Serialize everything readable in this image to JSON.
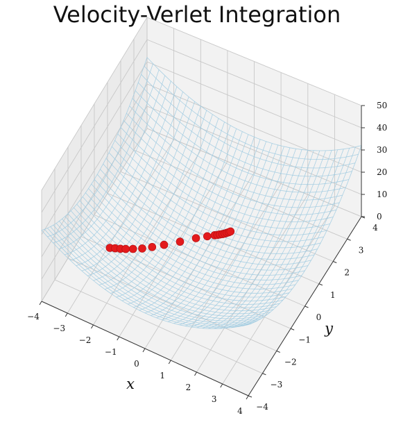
{
  "chart_data": {
    "type": "scatter",
    "title": "Velocity-Verlet Integration",
    "xlabel": "x",
    "ylabel": "y",
    "zlabel": "",
    "xlim": [
      -4,
      4
    ],
    "ylim": [
      -4,
      4
    ],
    "zlim": [
      0,
      50
    ],
    "x_ticks": [
      "−4",
      "−3",
      "−2",
      "−1",
      "0",
      "1",
      "2",
      "3",
      "4"
    ],
    "y_ticks": [
      "−4",
      "−3",
      "−2",
      "−1",
      "0",
      "1",
      "2",
      "3",
      "4"
    ],
    "z_ticks": [
      "0",
      "10",
      "20",
      "30",
      "40",
      "50"
    ],
    "grid": true,
    "surface": {
      "style": "wireframe",
      "color": "#9ecae1"
    },
    "trajectory": {
      "color": "#e31a1c",
      "x": [
        -2.75,
        -2.6,
        -2.45,
        -2.3,
        -2.1,
        -1.85,
        -1.6,
        -1.3,
        -0.9,
        -0.5,
        -0.2,
        0.0,
        0.08,
        0.15,
        0.22,
        0.28,
        0.33,
        0.38,
        0.42
      ],
      "y": [
        -1.3,
        -1.2,
        -1.1,
        -1.0,
        -0.85,
        -0.65,
        -0.4,
        -0.1,
        0.3,
        0.7,
        0.95,
        1.1,
        1.15,
        1.2,
        1.25,
        1.3,
        1.35,
        1.4,
        1.45
      ],
      "z": [
        4.3,
        3.9,
        3.5,
        3.2,
        2.8,
        2.3,
        1.8,
        1.4,
        0.9,
        0.6,
        0.5,
        0.5,
        0.55,
        0.6,
        0.65,
        0.7,
        0.75,
        0.8,
        0.85
      ]
    }
  }
}
